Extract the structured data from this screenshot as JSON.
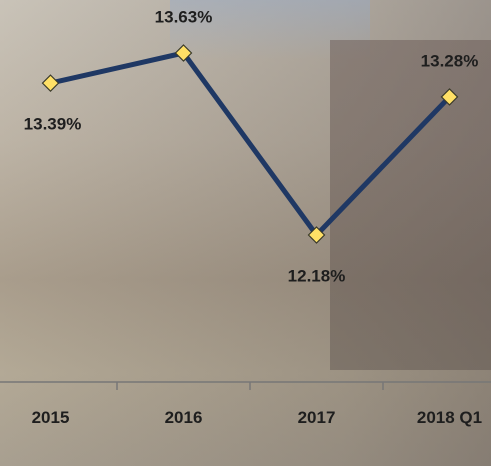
{
  "chart_data": {
    "type": "line",
    "categories": [
      "2015",
      "2016",
      "2017",
      "2018 Q1"
    ],
    "values": [
      13.39,
      13.63,
      12.18,
      13.28
    ],
    "value_labels": [
      "13.39%",
      "13.63%",
      "12.18%",
      "13.28%"
    ],
    "color": "#1f3864",
    "marker_color": "#ffe066"
  }
}
